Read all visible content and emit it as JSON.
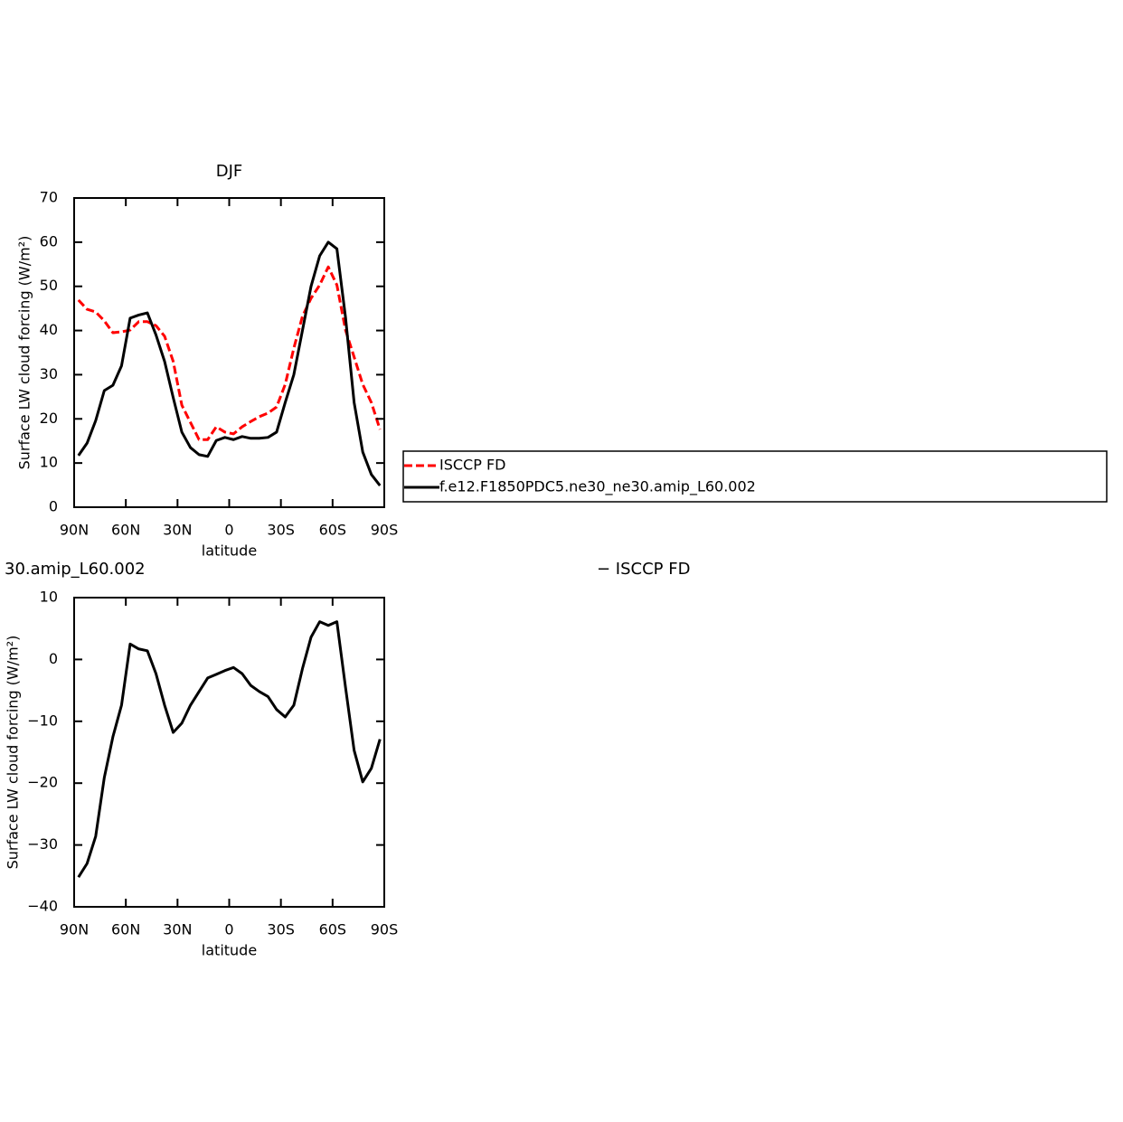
{
  "chart_data": [
    {
      "type": "line",
      "title": "DJF",
      "ylabel": "Surface LW cloud forcing (W/m²)",
      "xlabel": "latitude",
      "x": [
        87.5,
        82.5,
        77.5,
        72.5,
        67.5,
        62.5,
        57.5,
        52.5,
        47.5,
        42.5,
        37.5,
        32.5,
        27.5,
        22.5,
        17.5,
        12.5,
        7.5,
        2.5,
        -2.5,
        -7.5,
        -12.5,
        -17.5,
        -22.5,
        -27.5,
        -32.5,
        -37.5,
        -42.5,
        -47.5,
        -52.5,
        -57.5,
        -62.5,
        -67.5,
        -72.5,
        -77.5,
        -82.5,
        -87.5
      ],
      "xlim": [
        90,
        -90
      ],
      "xticks": [
        {
          "value": 90,
          "label": "90N"
        },
        {
          "value": 60,
          "label": "60N"
        },
        {
          "value": 30,
          "label": "30N"
        },
        0,
        {
          "value": -30,
          "label": "30S"
        },
        {
          "value": -60,
          "label": "60S"
        },
        {
          "value": -90,
          "label": "90S"
        }
      ],
      "ylim": [
        0,
        70
      ],
      "yticks": [
        0,
        10,
        20,
        30,
        40,
        50,
        60,
        70
      ],
      "legend": "right",
      "series": [
        {
          "name": "ISCCP FD",
          "color": "#ff0000",
          "dash": true,
          "values": [
            46.9,
            44.8,
            44.2,
            42.2,
            39.5,
            39.7,
            40.1,
            42,
            42,
            41.1,
            38.7,
            33,
            23.1,
            19.2,
            15.3,
            15.3,
            18.2,
            17,
            16.6,
            18.2,
            19.4,
            20.5,
            21.3,
            22.7,
            27.8,
            36,
            43.2,
            47.3,
            50.3,
            54.4,
            50.3,
            40.1,
            34,
            27.8,
            23.7,
            17.6
          ]
        },
        {
          "name": "f.e12.F1850PDC5.ne30_ne30.amip_L60.002",
          "color": "#000000",
          "dash": false,
          "values": [
            11.7,
            14.5,
            19.6,
            26.4,
            27.6,
            32,
            42.8,
            43.5,
            44,
            39,
            33,
            24.8,
            17,
            13.5,
            11.9,
            11.5,
            15.1,
            15.8,
            15.3,
            16,
            15.6,
            15.6,
            15.8,
            17,
            23.7,
            30,
            40,
            50,
            56.9,
            60,
            58.5,
            43,
            23.7,
            12.5,
            7.4,
            4.9
          ]
        }
      ]
    },
    {
      "type": "line",
      "title_left": "30.amip_L60.002",
      "title_right": "− ISCCP FD",
      "ylabel": "Surface LW cloud forcing (W/m²)",
      "xlabel": "latitude",
      "x": [
        87.5,
        82.5,
        77.5,
        72.5,
        67.5,
        62.5,
        57.5,
        52.5,
        47.5,
        42.5,
        37.5,
        32.5,
        27.5,
        22.5,
        17.5,
        12.5,
        7.5,
        2.5,
        -2.5,
        -7.5,
        -12.5,
        -17.5,
        -22.5,
        -27.5,
        -32.5,
        -37.5,
        -42.5,
        -47.5,
        -52.5,
        -57.5,
        -62.5,
        -67.5,
        -72.5,
        -77.5,
        -82.5,
        -87.5
      ],
      "xlim": [
        90,
        -90
      ],
      "xticks": [
        {
          "value": 90,
          "label": "90N"
        },
        {
          "value": 60,
          "label": "60N"
        },
        {
          "value": 30,
          "label": "30N"
        },
        0,
        {
          "value": -30,
          "label": "30S"
        },
        {
          "value": -60,
          "label": "60S"
        },
        {
          "value": -90,
          "label": "90S"
        }
      ],
      "ylim": [
        -40,
        10
      ],
      "yticks": [
        {
          "value": -40,
          "label": "−40"
        },
        {
          "value": -30,
          "label": "−30"
        },
        {
          "value": -20,
          "label": "−20"
        },
        {
          "value": -10,
          "label": "−10"
        },
        0,
        10
      ],
      "series": [
        {
          "color": "#000000",
          "dash": false,
          "values": [
            -35.2,
            -33,
            -28.6,
            -19.1,
            -12.5,
            -7.4,
            2.5,
            1.7,
            1.4,
            -2.3,
            -7.4,
            -11.8,
            -10.3,
            -7.4,
            -5.2,
            -3,
            -2.4,
            -1.8,
            -1.3,
            -2.3,
            -4.2,
            -5.2,
            -6,
            -8.1,
            -9.3,
            -7.4,
            -1.5,
            3.6,
            6.1,
            5.5,
            6.1,
            -4.5,
            -14.7,
            -19.8,
            -17.6,
            -12.9
          ]
        }
      ]
    }
  ]
}
